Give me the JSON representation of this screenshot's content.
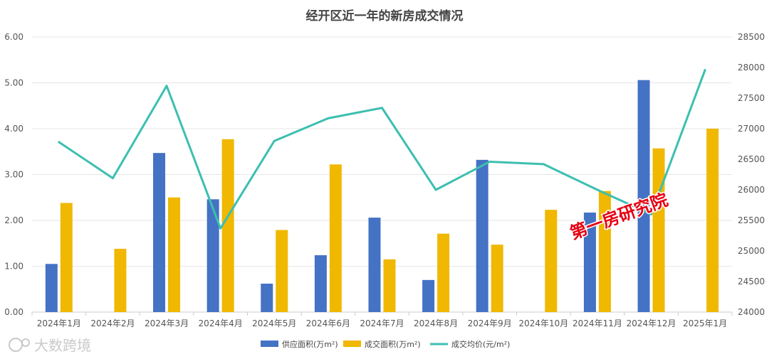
{
  "chart_data": {
    "type": "bar",
    "title": "经开区近一年的新房成交情况",
    "categories": [
      "2024年1月",
      "2024年2月",
      "2024年3月",
      "2024年4月",
      "2024年5月",
      "2024年6月",
      "2024年7月",
      "2024年8月",
      "2024年9月",
      "2024年10月",
      "2024年11月",
      "2024年12月",
      "2025年1月"
    ],
    "series": [
      {
        "name": "供应面积(万m²)",
        "type": "bar",
        "axis": "left",
        "color": "#4472c4",
        "values": [
          1.05,
          0,
          3.47,
          2.46,
          0.62,
          1.24,
          2.06,
          0.7,
          3.32,
          0,
          2.17,
          5.06,
          0
        ]
      },
      {
        "name": "成交面积(万m²)",
        "type": "bar",
        "axis": "left",
        "color": "#f0b800",
        "values": [
          2.38,
          1.38,
          2.5,
          3.77,
          1.79,
          3.22,
          1.15,
          1.71,
          1.47,
          2.23,
          2.64,
          3.57,
          4.0
        ]
      },
      {
        "name": "成交均价(元/m²)",
        "type": "line",
        "axis": "right",
        "color": "#3cbfb0",
        "values": [
          26780,
          26190,
          27700,
          25370,
          26800,
          27170,
          27340,
          26000,
          26460,
          26420,
          26000,
          25600,
          27960
        ]
      }
    ],
    "left_axis": {
      "ylim": [
        0,
        6
      ],
      "ticks": [
        "0.00",
        "1.00",
        "2.00",
        "3.00",
        "4.00",
        "5.00",
        "6.00"
      ]
    },
    "right_axis": {
      "ylim": [
        24000,
        28500
      ],
      "ticks": [
        "24000",
        "24500",
        "25000",
        "25500",
        "26000",
        "26500",
        "27000",
        "27500",
        "28000",
        "28500"
      ]
    },
    "grid": true,
    "legend": "bottom-center"
  },
  "stamp_text": "第一房研究院",
  "watermark_text": "大数跨境"
}
